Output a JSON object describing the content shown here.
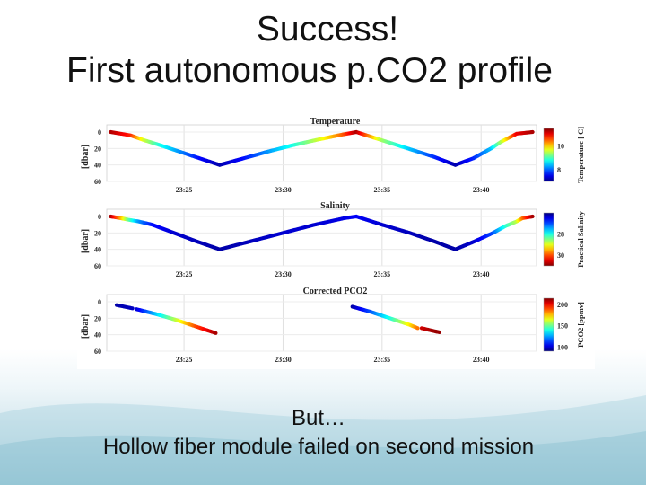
{
  "slide": {
    "title_line1": "Success!",
    "title_line2": "First autonomous p.CO2 profile",
    "caption_line1": "But…",
    "caption_line2": "Hollow fiber module failed on second mission"
  },
  "chart_data": [
    {
      "type": "scatter",
      "title": "Temperature",
      "ylabel": "[dbar]",
      "colorbar_label": "Temperature [ C]",
      "colorbar_ticks": [
        "10",
        "8"
      ],
      "colorbar_tick_values": [
        10,
        8
      ],
      "color_range": [
        7,
        11.5
      ],
      "colormap": "jet",
      "y_ticks": [
        "0",
        "20",
        "40",
        "60"
      ],
      "ylim": [
        0,
        60
      ],
      "y_reversed": true,
      "x_ticks": [
        "23:25",
        "23:30",
        "23:35",
        "23:40"
      ],
      "x_tick_values": [
        25,
        30,
        35,
        40
      ],
      "xlim": [
        21.1,
        42.8
      ],
      "x_unit": "minutes after 23:00",
      "grid": true,
      "segments": [
        {
          "x": [
            21.3,
            22.3,
            23.0,
            23.8,
            24.8,
            25.8,
            26.8
          ],
          "depth": [
            0,
            4,
            10,
            16,
            24,
            32,
            40
          ],
          "value": [
            11.3,
            10.8,
            9.6,
            8.8,
            8.2,
            7.6,
            7.2
          ]
        },
        {
          "x": [
            26.8,
            28.0,
            29.2,
            30.5,
            31.8,
            33.0,
            33.7
          ],
          "depth": [
            40,
            32,
            24,
            16,
            9,
            3,
            0
          ],
          "value": [
            7.2,
            7.6,
            8.2,
            8.8,
            9.6,
            10.5,
            11.3
          ]
        },
        {
          "x": [
            33.7,
            35.0,
            36.3,
            37.6,
            38.7
          ],
          "depth": [
            0,
            10,
            20,
            30,
            40
          ],
          "value": [
            11.3,
            9.4,
            8.5,
            7.8,
            7.2
          ]
        },
        {
          "x": [
            38.7,
            39.6,
            40.5,
            41.0,
            41.8,
            42.6
          ],
          "depth": [
            40,
            32,
            20,
            12,
            2,
            0
          ],
          "value": [
            7.2,
            7.7,
            8.4,
            9.4,
            11.0,
            11.3
          ]
        }
      ]
    },
    {
      "type": "scatter",
      "title": "Salinity",
      "ylabel": "[dbar]",
      "colorbar_label": "Practical Salinity",
      "colorbar_ticks": [
        "28",
        "30"
      ],
      "colorbar_tick_values": [
        28,
        30
      ],
      "color_range": [
        26,
        31
      ],
      "colormap": "jet_reversed",
      "y_ticks": [
        "0",
        "20",
        "40",
        "60"
      ],
      "ylim": [
        0,
        60
      ],
      "y_reversed": true,
      "x_ticks": [
        "23:25",
        "23:30",
        "23:35",
        "23:40"
      ],
      "x_tick_values": [
        25,
        30,
        35,
        40
      ],
      "xlim": [
        21.1,
        42.8
      ],
      "x_unit": "minutes after 23:00",
      "grid": true,
      "segments": [
        {
          "x": [
            21.3,
            21.8,
            22.2,
            22.7,
            23.4,
            24.5,
            25.6,
            26.8
          ],
          "depth": [
            0,
            2,
            4,
            6,
            10,
            20,
            30,
            40
          ],
          "value": [
            26.2,
            27.4,
            28.6,
            29.6,
            30.3,
            30.6,
            30.7,
            30.8
          ]
        },
        {
          "x": [
            26.8,
            28.4,
            30.0,
            31.6,
            33.1,
            33.7
          ],
          "depth": [
            40,
            30,
            20,
            10,
            2,
            0
          ],
          "value": [
            30.8,
            30.7,
            30.6,
            30.6,
            30.5,
            30.4
          ]
        },
        {
          "x": [
            33.7,
            35.0,
            36.4,
            37.6,
            38.7
          ],
          "depth": [
            0,
            10,
            20,
            30,
            40
          ],
          "value": [
            30.4,
            30.6,
            30.7,
            30.8,
            30.8
          ]
        },
        {
          "x": [
            38.7,
            39.7,
            40.6,
            41.2,
            41.8,
            42.1,
            42.6
          ],
          "depth": [
            40,
            30,
            20,
            12,
            6,
            2,
            0
          ],
          "value": [
            30.8,
            30.6,
            30.0,
            29.0,
            28.2,
            27.2,
            26.2
          ]
        }
      ]
    },
    {
      "type": "scatter",
      "title": "Corrected PCO2",
      "ylabel": "[dbar]",
      "colorbar_label": "PCO2 [ppmv]",
      "colorbar_ticks": [
        "200",
        "150",
        "100"
      ],
      "colorbar_tick_values": [
        200,
        150,
        100
      ],
      "color_range": [
        90,
        215
      ],
      "colormap": "jet",
      "y_ticks": [
        "0",
        "20",
        "40",
        "60"
      ],
      "ylim": [
        0,
        60
      ],
      "y_reversed": true,
      "x_ticks": [
        "23:25",
        "23:30",
        "23:35",
        "23:40"
      ],
      "x_tick_values": [
        25,
        30,
        35,
        40
      ],
      "xlim": [
        21.1,
        42.8
      ],
      "x_unit": "minutes after 23:00",
      "grid": true,
      "segments": [
        {
          "x": [
            21.6,
            22.4
          ],
          "depth": [
            4,
            8
          ],
          "value": [
            95,
            98
          ]
        },
        {
          "x": [
            22.6,
            23.6,
            24.6,
            25.6,
            26.6
          ],
          "depth": [
            9,
            15,
            22,
            30,
            38
          ],
          "value": [
            100,
            130,
            160,
            190,
            210
          ]
        },
        {
          "x": [
            33.5,
            34.4,
            35.4,
            36.4,
            36.8
          ],
          "depth": [
            6,
            12,
            20,
            28,
            32
          ],
          "value": [
            95,
            115,
            140,
            170,
            185
          ]
        },
        {
          "x": [
            37.0,
            37.7,
            37.9
          ],
          "depth": [
            32,
            36,
            37
          ],
          "value": [
            205,
            212,
            212
          ]
        }
      ]
    }
  ]
}
